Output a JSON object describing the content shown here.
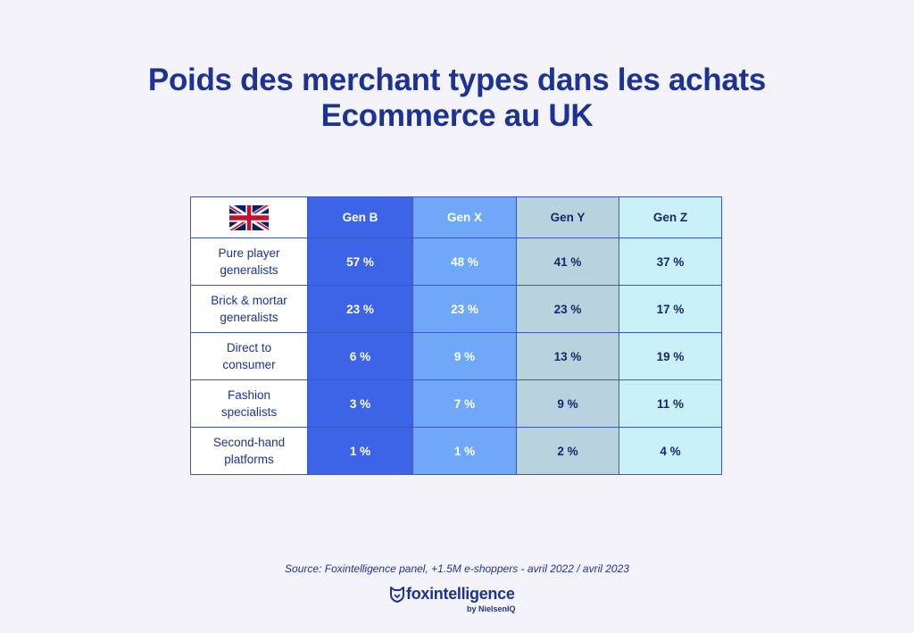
{
  "title_lines": [
    "Poids des merchant types dans les achats",
    "Ecommerce au UK"
  ],
  "chart_data": {
    "type": "table",
    "columns": [
      "Gen B",
      "Gen X",
      "Gen Y",
      "Gen Z"
    ],
    "rows": [
      {
        "label": "Pure player generalists",
        "values": [
          "57 %",
          "48 %",
          "41 %",
          "37 %"
        ]
      },
      {
        "label": "Brick & mortar generalists",
        "values": [
          "23 %",
          "23 %",
          "23 %",
          "17 %"
        ]
      },
      {
        "label": "Direct to consumer",
        "values": [
          "6 %",
          "9 %",
          "13 %",
          "19 %"
        ]
      },
      {
        "label": "Fashion specialists",
        "values": [
          "3 %",
          "7 %",
          "9 %",
          "11 %"
        ]
      },
      {
        "label": "Second-hand platforms",
        "values": [
          "1 %",
          "1 %",
          "2 %",
          "4 %"
        ]
      }
    ],
    "column_colors": [
      "#3d64e6",
      "#6ea8f7",
      "#b8d3dd",
      "#caf0f8"
    ],
    "corner_icon": "uk-flag-icon"
  },
  "source": "Source: Foxintelligence panel, +1.5M e-shoppers - avril 2022 / avril 2023",
  "brand": {
    "name": "foxintelligence",
    "byline": "by NielsenIQ",
    "icon": "fox-logo-icon"
  }
}
